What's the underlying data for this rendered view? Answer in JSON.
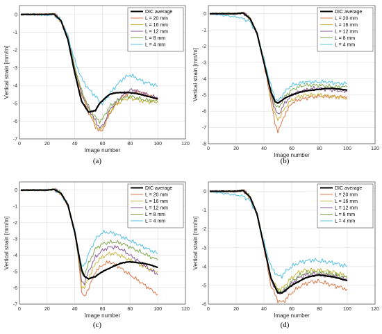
{
  "chart_data": [
    {
      "type": "line",
      "caption": "(a)",
      "xlabel": "Image number",
      "ylabel": "Vertical strain [mm/m]",
      "xlim": [
        0,
        120
      ],
      "ylim": [
        -7,
        0.5
      ],
      "xticks": [
        "0",
        "20",
        "40",
        "60",
        "80",
        "100",
        "120"
      ],
      "yticks": [
        "0",
        "-1",
        "-2",
        "-3",
        "-4",
        "-5",
        "-6",
        "-7"
      ],
      "grid": true,
      "legend_position": "top-right",
      "x": [
        1,
        10,
        20,
        25,
        30,
        35,
        40,
        45,
        50,
        55,
        58,
        60,
        62,
        65,
        70,
        75,
        80,
        85,
        90,
        95,
        100
      ],
      "series": [
        {
          "name": "DIC average",
          "color": "#000000",
          "width": 2,
          "values": [
            0,
            0,
            0,
            0.02,
            -0.35,
            -1.4,
            -3.3,
            -4.9,
            -5.5,
            -5.4,
            -5.0,
            -4.85,
            -4.7,
            -4.5,
            -4.4,
            -4.4,
            -4.4,
            -4.45,
            -4.55,
            -4.65,
            -4.75
          ]
        },
        {
          "name": "L = 20 mm",
          "color": "#d9774a",
          "width": 1,
          "values": [
            0,
            0,
            0,
            0.03,
            -0.35,
            -1.3,
            -3.0,
            -4.5,
            -5.5,
            -6.3,
            -6.6,
            -6.5,
            -6.2,
            -5.6,
            -5.0,
            -4.6,
            -4.4,
            -4.35,
            -4.45,
            -4.6,
            -4.75
          ]
        },
        {
          "name": "L = 16 mm",
          "color": "#c8b43a",
          "width": 1,
          "values": [
            0,
            0,
            0,
            0.03,
            -0.35,
            -1.3,
            -3.0,
            -4.4,
            -5.4,
            -6.2,
            -6.5,
            -6.4,
            -6.0,
            -5.5,
            -5.1,
            -4.8,
            -4.7,
            -4.8,
            -4.9,
            -4.9,
            -4.9
          ]
        },
        {
          "name": "L = 12 mm",
          "color": "#8a5a9a",
          "width": 1,
          "values": [
            0,
            0,
            0,
            0.03,
            -0.35,
            -1.3,
            -3.0,
            -4.4,
            -5.3,
            -6.0,
            -6.35,
            -6.3,
            -6.0,
            -5.4,
            -4.9,
            -4.5,
            -4.25,
            -4.3,
            -4.45,
            -4.6,
            -4.7
          ]
        },
        {
          "name": "L = 8 mm",
          "color": "#7fa84f",
          "width": 1,
          "values": [
            0,
            0,
            0,
            0.03,
            -0.35,
            -1.3,
            -3.0,
            -4.3,
            -5.2,
            -5.8,
            -6.0,
            -5.9,
            -5.6,
            -5.2,
            -4.9,
            -4.7,
            -4.6,
            -4.7,
            -4.8,
            -4.85,
            -4.9
          ]
        },
        {
          "name": "L = 4 mm",
          "color": "#56c0e0",
          "width": 1,
          "values": [
            0,
            0,
            -0.05,
            0.0,
            -0.3,
            -1.2,
            -2.6,
            -3.6,
            -4.2,
            -4.6,
            -4.9,
            -5.0,
            -4.8,
            -4.5,
            -4.0,
            -3.6,
            -3.4,
            -3.6,
            -3.8,
            -3.9,
            -4.05
          ]
        }
      ]
    },
    {
      "type": "line",
      "caption": "(b)",
      "xlabel": "Image number",
      "ylabel": "Vertical strain [mm/m]",
      "xlim": [
        0,
        120
      ],
      "ylim": [
        -8,
        0.5
      ],
      "xticks": [
        "0",
        "20",
        "40",
        "60",
        "80",
        "100",
        "120"
      ],
      "yticks": [
        "0",
        "-1",
        "-2",
        "-3",
        "-4",
        "-5",
        "-6",
        "-7",
        "-8"
      ],
      "grid": true,
      "legend_position": "top-right",
      "x": [
        1,
        10,
        20,
        25,
        30,
        35,
        40,
        45,
        48,
        50,
        52,
        55,
        60,
        65,
        70,
        75,
        80,
        85,
        90,
        95,
        100
      ],
      "series": [
        {
          "name": "DIC average",
          "color": "#000000",
          "width": 2,
          "values": [
            0,
            0,
            0,
            0.05,
            -0.3,
            -1.2,
            -3.0,
            -4.8,
            -5.4,
            -5.5,
            -5.4,
            -5.2,
            -5.0,
            -4.85,
            -4.75,
            -4.7,
            -4.65,
            -4.6,
            -4.6,
            -4.65,
            -4.7
          ]
        },
        {
          "name": "L = 20 mm",
          "color": "#d9774a",
          "width": 1,
          "values": [
            0,
            0,
            0,
            0.05,
            -0.3,
            -1.2,
            -3.1,
            -5.3,
            -6.8,
            -7.2,
            -6.9,
            -6.2,
            -5.5,
            -5.3,
            -5.2,
            -5.1,
            -5.1,
            -5.1,
            -5.1,
            -5.1,
            -5.1
          ]
        },
        {
          "name": "L = 16 mm",
          "color": "#c8b43a",
          "width": 1,
          "values": [
            0,
            0,
            0,
            0.05,
            -0.3,
            -1.2,
            -3.0,
            -5.0,
            -6.2,
            -6.5,
            -6.3,
            -5.8,
            -5.3,
            -5.1,
            -5.0,
            -5.0,
            -5.0,
            -5.05,
            -5.1,
            -5.15,
            -5.2
          ]
        },
        {
          "name": "L = 12 mm",
          "color": "#8a5a9a",
          "width": 1,
          "values": [
            0,
            0,
            0,
            0.05,
            -0.3,
            -1.2,
            -3.0,
            -4.9,
            -5.9,
            -6.2,
            -6.0,
            -5.5,
            -5.0,
            -4.8,
            -4.7,
            -4.6,
            -4.6,
            -4.65,
            -4.7,
            -4.75,
            -4.8
          ]
        },
        {
          "name": "L = 8 mm",
          "color": "#7fa84f",
          "width": 1,
          "values": [
            0,
            0,
            0,
            0.05,
            -0.3,
            -1.2,
            -2.9,
            -4.7,
            -5.6,
            -5.8,
            -5.6,
            -5.1,
            -4.7,
            -4.5,
            -4.4,
            -4.4,
            -4.4,
            -4.45,
            -4.5,
            -4.5,
            -4.5
          ]
        },
        {
          "name": "L = 4 mm",
          "color": "#56c0e0",
          "width": 1,
          "values": [
            0,
            -0.1,
            -0.2,
            -0.3,
            -0.5,
            -1.2,
            -2.8,
            -4.4,
            -5.2,
            -5.4,
            -5.2,
            -4.8,
            -4.4,
            -4.3,
            -4.2,
            -4.2,
            -4.2,
            -4.2,
            -4.25,
            -4.3,
            -4.3
          ]
        }
      ]
    },
    {
      "type": "line",
      "caption": "(c)",
      "xlabel": "Image number",
      "ylabel": "Vertical strain [mm/m]",
      "xlim": [
        0,
        120
      ],
      "ylim": [
        -7,
        0.5
      ],
      "xticks": [
        "0",
        "20",
        "40",
        "60",
        "80",
        "100",
        "120"
      ],
      "yticks": [
        "0",
        "-1",
        "-2",
        "-3",
        "-4",
        "-5",
        "-6",
        "-7"
      ],
      "grid": true,
      "legend_position": "top-right",
      "x": [
        1,
        10,
        20,
        25,
        30,
        35,
        40,
        43,
        45,
        47,
        50,
        55,
        60,
        65,
        70,
        75,
        80,
        85,
        90,
        95,
        100
      ],
      "series": [
        {
          "name": "DIC average",
          "color": "#000000",
          "width": 2,
          "values": [
            0,
            0,
            0,
            0.05,
            -0.2,
            -0.9,
            -2.6,
            -4.0,
            -4.9,
            -5.3,
            -5.45,
            -5.3,
            -5.0,
            -4.8,
            -4.6,
            -4.45,
            -4.4,
            -4.45,
            -4.5,
            -4.6,
            -4.75
          ]
        },
        {
          "name": "L = 20 mm",
          "color": "#d9774a",
          "width": 1,
          "values": [
            0,
            0,
            0,
            0.05,
            -0.2,
            -0.9,
            -2.6,
            -4.5,
            -6.2,
            -6.6,
            -6.0,
            -5.0,
            -4.6,
            -4.4,
            -4.6,
            -4.9,
            -5.2,
            -5.5,
            -5.8,
            -6.1,
            -6.4
          ]
        },
        {
          "name": "L = 16 mm",
          "color": "#c8b43a",
          "width": 1,
          "values": [
            0,
            0,
            0,
            0.05,
            -0.2,
            -0.9,
            -2.6,
            -4.4,
            -5.9,
            -6.0,
            -5.4,
            -4.5,
            -4.1,
            -3.9,
            -3.9,
            -4.1,
            -4.3,
            -4.5,
            -4.7,
            -4.9,
            -5.0
          ]
        },
        {
          "name": "L = 12 mm",
          "color": "#8a5a9a",
          "width": 1,
          "values": [
            0,
            0,
            0,
            0.05,
            -0.2,
            -0.9,
            -2.6,
            -4.3,
            -5.6,
            -5.7,
            -5.0,
            -4.1,
            -3.7,
            -3.5,
            -3.5,
            -3.7,
            -4.0,
            -4.3,
            -4.6,
            -4.9,
            -5.2
          ]
        },
        {
          "name": "L = 8 mm",
          "color": "#7fa84f",
          "width": 1,
          "values": [
            0,
            0,
            0,
            0.05,
            -0.2,
            -0.9,
            -2.6,
            -4.2,
            -5.2,
            -5.2,
            -4.5,
            -3.6,
            -3.3,
            -3.2,
            -3.2,
            -3.3,
            -3.5,
            -3.7,
            -3.9,
            -4.1,
            -4.3
          ]
        },
        {
          "name": "L = 4 mm",
          "color": "#56c0e0",
          "width": 1,
          "values": [
            0,
            0,
            0,
            0.05,
            -0.2,
            -0.9,
            -2.5,
            -3.9,
            -4.7,
            -4.6,
            -3.9,
            -3.0,
            -2.6,
            -2.6,
            -2.7,
            -2.9,
            -3.1,
            -3.3,
            -3.5,
            -3.7,
            -3.9
          ]
        }
      ]
    },
    {
      "type": "line",
      "caption": "(d)",
      "xlabel": "Image number",
      "ylabel": "Vertical strain [mm/m]",
      "xlim": [
        0,
        120
      ],
      "ylim": [
        -6,
        0.5
      ],
      "xticks": [
        "0",
        "20",
        "40",
        "60",
        "80",
        "100",
        "120"
      ],
      "yticks": [
        "0",
        "-1",
        "-2",
        "-3",
        "-4",
        "-5",
        "-6"
      ],
      "grid": true,
      "legend_position": "top-right",
      "x": [
        1,
        10,
        20,
        25,
        30,
        35,
        40,
        45,
        50,
        53,
        55,
        60,
        65,
        70,
        75,
        80,
        85,
        90,
        95,
        100
      ],
      "series": [
        {
          "name": "DIC average",
          "color": "#000000",
          "width": 2,
          "values": [
            0,
            0,
            0,
            0.05,
            -0.3,
            -1.2,
            -2.9,
            -4.6,
            -5.4,
            -5.4,
            -5.3,
            -5.0,
            -4.8,
            -4.6,
            -4.5,
            -4.45,
            -4.5,
            -4.55,
            -4.65,
            -4.75
          ]
        },
        {
          "name": "L = 20 mm",
          "color": "#d9774a",
          "width": 1,
          "values": [
            0,
            0,
            0,
            0.05,
            -0.3,
            -1.2,
            -3.0,
            -5.0,
            -5.8,
            -5.9,
            -5.8,
            -5.4,
            -5.1,
            -4.9,
            -4.8,
            -4.8,
            -4.9,
            -5.0,
            -5.1,
            -5.2
          ]
        },
        {
          "name": "L = 16 mm",
          "color": "#c8b43a",
          "width": 1,
          "values": [
            0,
            0,
            0,
            0.05,
            -0.3,
            -1.2,
            -2.9,
            -4.6,
            -5.2,
            -5.2,
            -5.0,
            -4.6,
            -4.3,
            -4.2,
            -4.2,
            -4.2,
            -4.25,
            -4.3,
            -4.4,
            -4.5
          ]
        },
        {
          "name": "L = 12 mm",
          "color": "#8a5a9a",
          "width": 1,
          "values": [
            0,
            0,
            0,
            0.05,
            -0.3,
            -1.2,
            -2.9,
            -4.7,
            -5.4,
            -5.4,
            -5.3,
            -4.9,
            -4.6,
            -4.45,
            -4.4,
            -4.4,
            -4.45,
            -4.5,
            -4.6,
            -4.7
          ]
        },
        {
          "name": "L = 8 mm",
          "color": "#7fa84f",
          "width": 1,
          "values": [
            0,
            0,
            0,
            0.05,
            -0.3,
            -1.2,
            -2.9,
            -4.6,
            -5.3,
            -5.3,
            -5.2,
            -4.8,
            -4.5,
            -4.35,
            -4.3,
            -4.3,
            -4.35,
            -4.4,
            -4.5,
            -4.6
          ]
        },
        {
          "name": "L = 4 mm",
          "color": "#56c0e0",
          "width": 1,
          "values": [
            0,
            -0.1,
            -0.2,
            -0.25,
            -0.5,
            -1.2,
            -2.7,
            -4.0,
            -4.5,
            -4.5,
            -4.3,
            -4.0,
            -3.8,
            -3.7,
            -3.65,
            -3.7,
            -3.75,
            -3.8,
            -3.9,
            -4.0
          ]
        }
      ]
    }
  ]
}
